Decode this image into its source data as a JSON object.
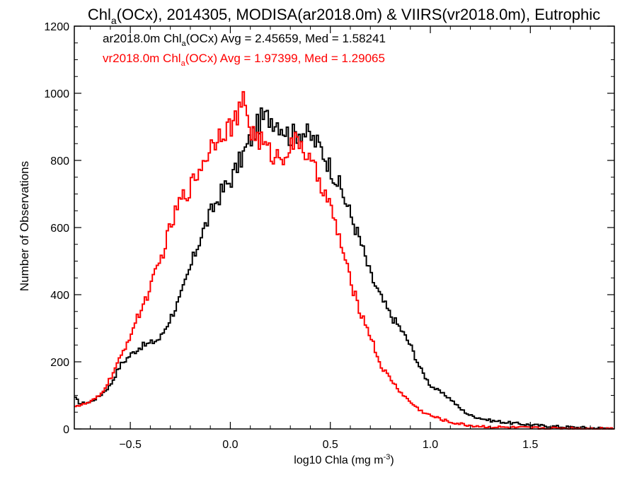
{
  "chart_data": {
    "type": "line",
    "style": "step-histogram",
    "title": {
      "pre": "Chl",
      "sub": "a",
      "post": "(OCx), 2014305, MODISA(ar2018.0m) & VIIRS(vr2018.0m), Eutrophic"
    },
    "xlabel": {
      "pre": "log10 Chla (mg m",
      "sup": "-3",
      "post": ")"
    },
    "ylabel": "Number of Observations",
    "xlim": [
      -0.78,
      1.92
    ],
    "ylim": [
      0,
      1200
    ],
    "xticks": [
      {
        "v": -0.5,
        "label": "−0.5"
      },
      {
        "v": 0.0,
        "label": "0.0"
      },
      {
        "v": 0.5,
        "label": "0.5"
      },
      {
        "v": 1.0,
        "label": "1.0"
      },
      {
        "v": 1.5,
        "label": "1.5"
      }
    ],
    "yticks": [
      {
        "v": 0,
        "label": "0"
      },
      {
        "v": 200,
        "label": "200"
      },
      {
        "v": 400,
        "label": "400"
      },
      {
        "v": 600,
        "label": "600"
      },
      {
        "v": 800,
        "label": "800"
      },
      {
        "v": 1000,
        "label": "1000"
      },
      {
        "v": 1200,
        "label": "1200"
      }
    ],
    "grid": false,
    "legend_position": "top-left",
    "series": [
      {
        "name": "ar2018.0m",
        "color": "#000000",
        "annotation": {
          "pre": "ar2018.0m Chl",
          "sub": "a",
          "post": "(OCx) Avg = 2.45659, Med = 1.58241"
        },
        "x": [
          -0.78,
          -0.75,
          -0.7,
          -0.65,
          -0.6,
          -0.55,
          -0.5,
          -0.45,
          -0.4,
          -0.35,
          -0.3,
          -0.25,
          -0.2,
          -0.15,
          -0.1,
          -0.05,
          0.0,
          0.05,
          0.1,
          0.15,
          0.2,
          0.25,
          0.3,
          0.35,
          0.4,
          0.45,
          0.5,
          0.55,
          0.6,
          0.65,
          0.7,
          0.75,
          0.8,
          0.85,
          0.9,
          0.95,
          1.0,
          1.05,
          1.1,
          1.15,
          1.2,
          1.3,
          1.4,
          1.5,
          1.6,
          1.7,
          1.8,
          1.92
        ],
        "y": [
          95,
          75,
          80,
          100,
          130,
          190,
          220,
          245,
          255,
          270,
          330,
          390,
          480,
          570,
          640,
          700,
          740,
          800,
          860,
          920,
          930,
          910,
          870,
          890,
          870,
          840,
          780,
          720,
          640,
          560,
          460,
          395,
          340,
          300,
          250,
          180,
          130,
          110,
          90,
          60,
          40,
          25,
          18,
          12,
          8,
          5,
          3,
          2
        ]
      },
      {
        "name": "vr2018.0m",
        "color": "#ff0000",
        "annotation": {
          "pre": "vr2018.0m Chl",
          "sub": "a",
          "post": "(OCx) Avg = 1.97399, Med = 1.29065"
        },
        "x": [
          -0.78,
          -0.75,
          -0.7,
          -0.65,
          -0.6,
          -0.55,
          -0.5,
          -0.45,
          -0.4,
          -0.35,
          -0.3,
          -0.25,
          -0.2,
          -0.15,
          -0.1,
          -0.05,
          0.0,
          0.05,
          0.07,
          0.1,
          0.15,
          0.2,
          0.25,
          0.3,
          0.35,
          0.4,
          0.45,
          0.5,
          0.55,
          0.6,
          0.65,
          0.7,
          0.75,
          0.8,
          0.85,
          0.9,
          0.95,
          1.0,
          1.05,
          1.1,
          1.15,
          1.2,
          1.3,
          1.4,
          1.5,
          1.6,
          1.7,
          1.8,
          1.92
        ],
        "y": [
          70,
          70,
          80,
          100,
          150,
          210,
          280,
          350,
          420,
          500,
          600,
          680,
          720,
          780,
          840,
          890,
          900,
          940,
          990,
          890,
          860,
          820,
          810,
          840,
          860,
          790,
          740,
          660,
          560,
          440,
          350,
          280,
          190,
          150,
          110,
          80,
          55,
          40,
          30,
          20,
          15,
          10,
          6,
          4,
          3,
          2,
          2,
          1,
          1
        ]
      }
    ]
  }
}
